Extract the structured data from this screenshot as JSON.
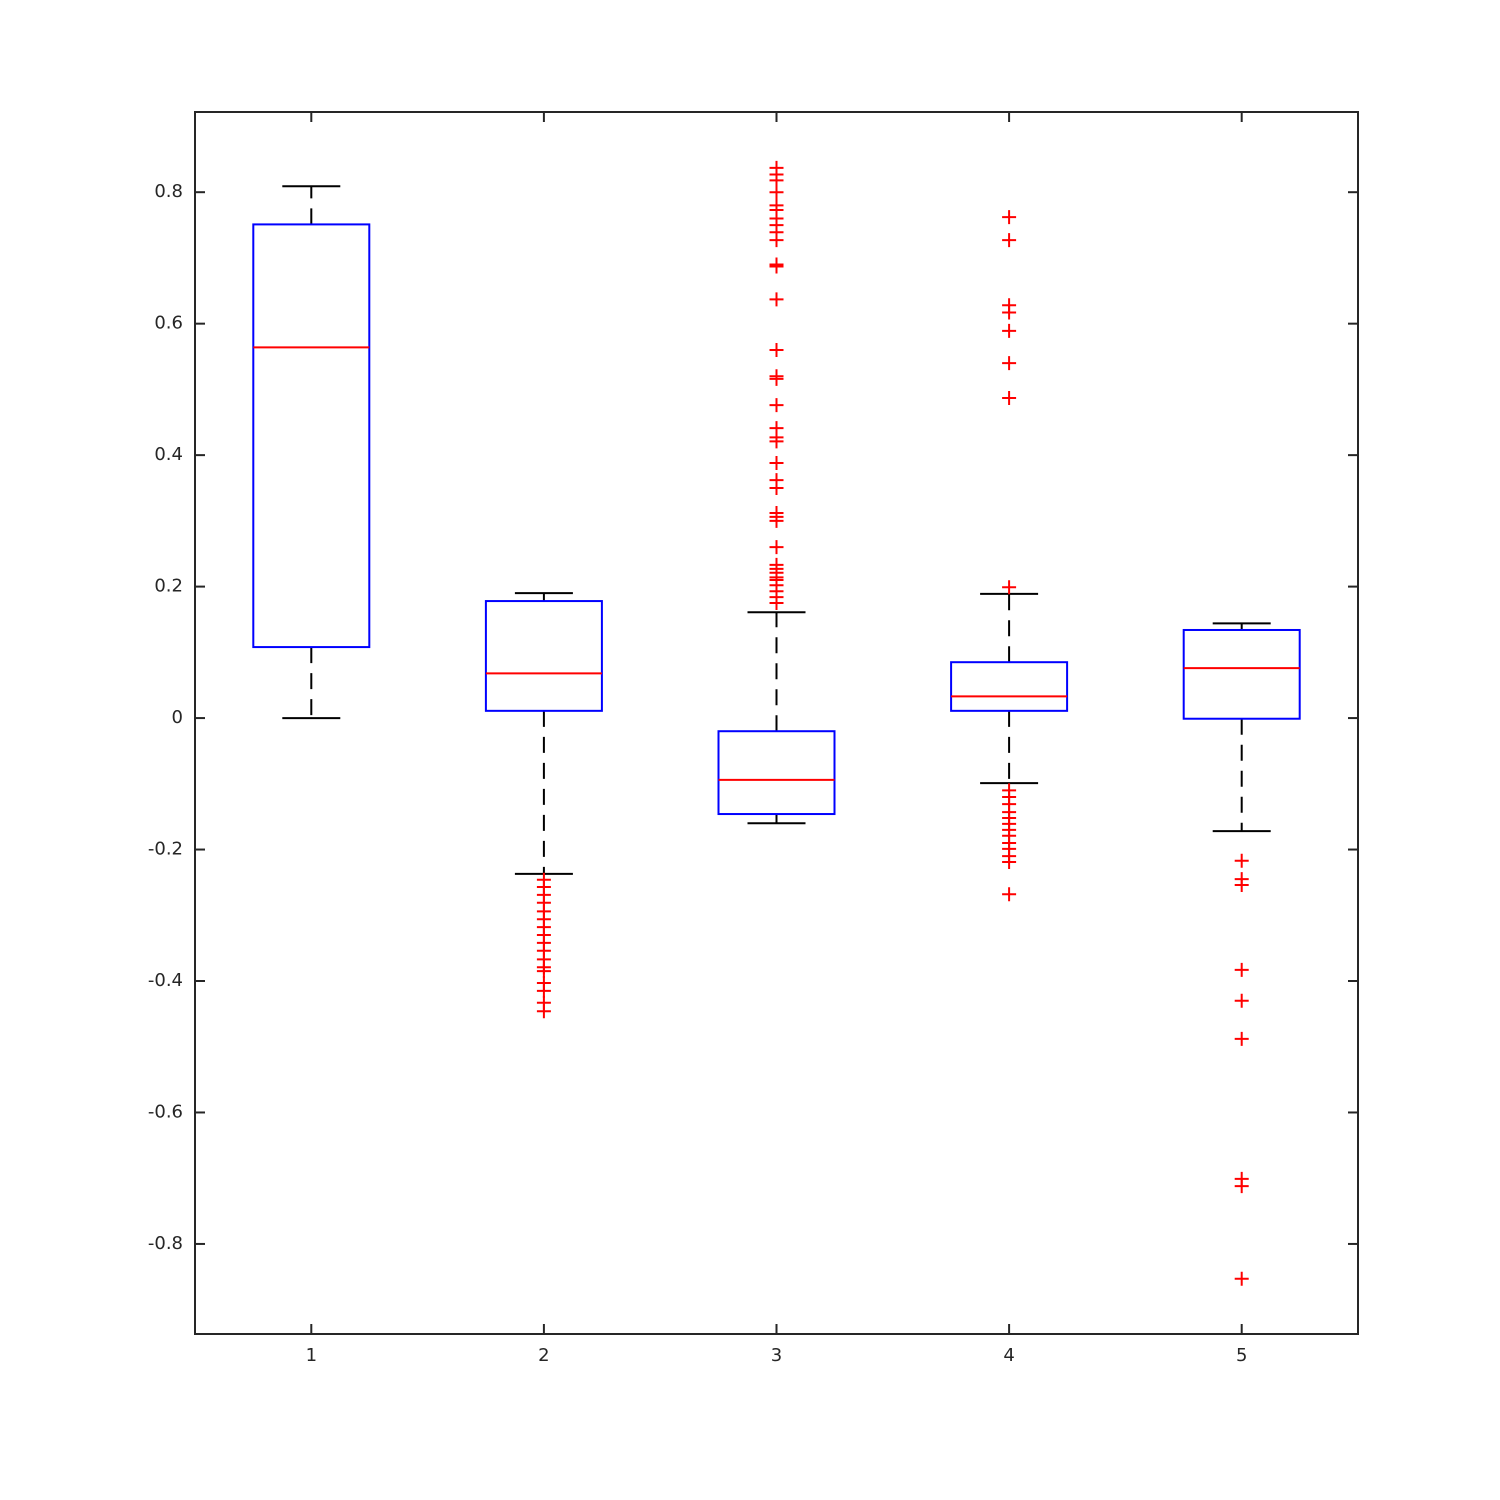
{
  "chart_data": {
    "type": "box",
    "categories": [
      "1",
      "2",
      "3",
      "4",
      "5"
    ],
    "boxes": [
      {
        "whisker_low": 0,
        "q1": 0.108,
        "median": 0.564,
        "q3": 0.751,
        "whisker_high": 0.809,
        "outliers": []
      },
      {
        "whisker_low": -0.237,
        "q1": 0.011,
        "median": 0.068,
        "q3": 0.178,
        "whisker_high": 0.19,
        "outliers": [
          -0.246,
          -0.257,
          -0.269,
          -0.281,
          -0.294,
          -0.306,
          -0.318,
          -0.33,
          -0.342,
          -0.354,
          -0.367,
          -0.379,
          -0.385,
          -0.403,
          -0.415,
          -0.433,
          -0.446
        ]
      },
      {
        "whisker_low": -0.16,
        "q1": -0.146,
        "median": -0.094,
        "q3": -0.02,
        "whisker_high": 0.161,
        "outliers": [
          0.837,
          0.827,
          0.818,
          0.8,
          0.78,
          0.773,
          0.76,
          0.75,
          0.739,
          0.727,
          0.69,
          0.687,
          0.637,
          0.56,
          0.52,
          0.516,
          0.476,
          0.441,
          0.427,
          0.421,
          0.388,
          0.362,
          0.35,
          0.312,
          0.306,
          0.3,
          0.26,
          0.233,
          0.227,
          0.221,
          0.214,
          0.21,
          0.202,
          0.193,
          0.184,
          0.175
        ]
      },
      {
        "whisker_low": -0.099,
        "q1": 0.011,
        "median": 0.033,
        "q3": 0.085,
        "whisker_high": 0.189,
        "outliers": [
          0.762,
          0.727,
          0.628,
          0.617,
          0.589,
          0.54,
          0.487,
          0.199,
          -0.11,
          -0.12,
          -0.131,
          -0.143,
          -0.152,
          -0.161,
          -0.17,
          -0.179,
          -0.19,
          -0.199,
          -0.21,
          -0.219,
          -0.268
        ]
      },
      {
        "whisker_low": -0.172,
        "q1": -0.001,
        "median": 0.076,
        "q3": 0.134,
        "whisker_high": 0.144,
        "outliers": [
          -0.217,
          -0.245,
          -0.254,
          -0.383,
          -0.43,
          -0.488,
          -0.701,
          -0.712,
          -0.853
        ]
      }
    ],
    "box_color": "#0000ff",
    "median_color": "#ff0000",
    "whisker_color": "#000000",
    "outlier_color": "#ff0000",
    "ylim": [
      -0.937,
      0.922
    ],
    "yticks": [
      -0.8,
      -0.6,
      -0.4,
      -0.2,
      0,
      0.2,
      0.4,
      0.6,
      0.8
    ]
  }
}
